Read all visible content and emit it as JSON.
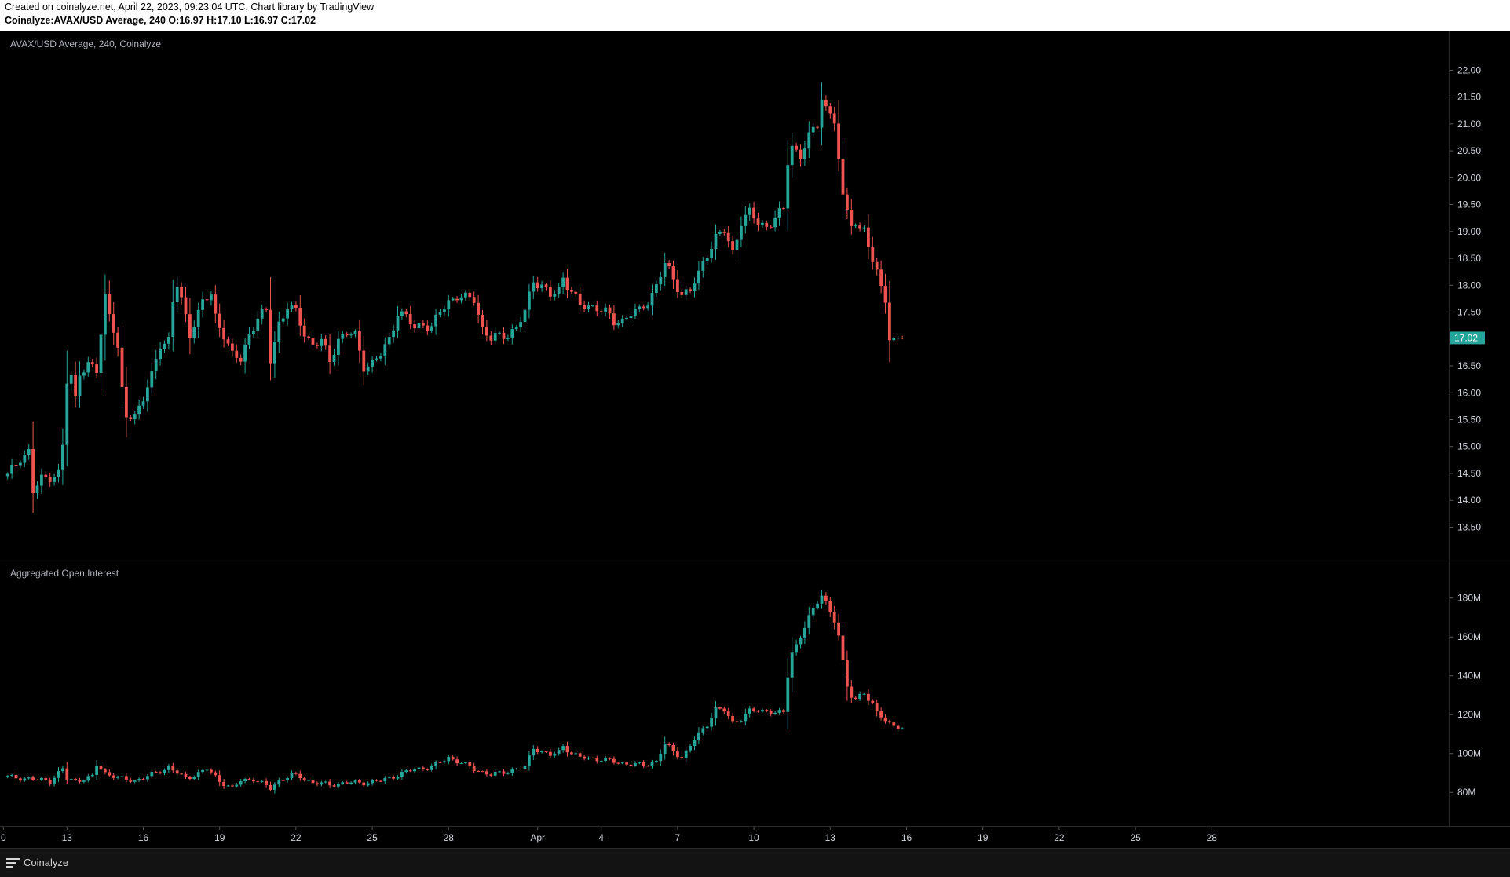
{
  "header": {
    "created": "Created on coinalyze.net, April 22, 2023, 09:23:04 UTC, Chart library by TradingView",
    "symbol": "Coinalyze:AVAX/USD Average, 240",
    "o_label": "O:",
    "o": "16.97",
    "h_label": "H:",
    "h": "17.10",
    "l_label": "L:",
    "l": "16.97",
    "c_label": "C:",
    "c": "17.02"
  },
  "footer": {
    "brand": "Coinalyze",
    "brand_icon": "menu-lines-icon"
  },
  "colors": {
    "up": "#26a69a",
    "down": "#ef5350",
    "background": "#000000",
    "grid_line": "#2a2a2a",
    "axis_text": "#d1d4dc",
    "price_tag": "#26a69a"
  },
  "chart_data": [
    {
      "type": "candlestick",
      "title": "AVAX/USD Average, 240, Coinalyze",
      "ylim": [
        13.2,
        22.4
      ],
      "yticks": [
        "22.00",
        "21.50",
        "21.00",
        "20.50",
        "20.00",
        "19.50",
        "19.00",
        "18.50",
        "18.00",
        "17.50",
        "17.00",
        "16.50",
        "16.00",
        "15.50",
        "15.00",
        "14.50",
        "14.00",
        "13.50"
      ],
      "last_price": "17.02",
      "anchors": [
        [
          0,
          14.45
        ],
        [
          3,
          14.8
        ],
        [
          5,
          14.9
        ],
        [
          6,
          14.15
        ],
        [
          8,
          14.4
        ],
        [
          10,
          14.45
        ],
        [
          12,
          14.5
        ],
        [
          13,
          15.0
        ],
        [
          14,
          16.2
        ],
        [
          15,
          16.3
        ],
        [
          16,
          15.9
        ],
        [
          17,
          16.4
        ],
        [
          19,
          16.5
        ],
        [
          21,
          16.4
        ],
        [
          23,
          17.8
        ],
        [
          24,
          17.5
        ],
        [
          25,
          17.2
        ],
        [
          26,
          16.8
        ],
        [
          27,
          16.0
        ],
        [
          28,
          15.55
        ],
        [
          30,
          15.6
        ],
        [
          32,
          15.9
        ],
        [
          34,
          16.3
        ],
        [
          36,
          16.9
        ],
        [
          38,
          17.0
        ],
        [
          39,
          17.7
        ],
        [
          40,
          18.0
        ],
        [
          42,
          17.4
        ],
        [
          43,
          17.1
        ],
        [
          46,
          17.7
        ],
        [
          48,
          17.8
        ],
        [
          49,
          17.4
        ],
        [
          51,
          17.1
        ],
        [
          53,
          16.7
        ],
        [
          55,
          16.6
        ],
        [
          57,
          17.1
        ],
        [
          59,
          17.4
        ],
        [
          61,
          17.5
        ],
        [
          62,
          16.6
        ],
        [
          64,
          17.3
        ],
        [
          66,
          17.6
        ],
        [
          68,
          17.5
        ],
        [
          70,
          17.1
        ],
        [
          72,
          16.9
        ],
        [
          74,
          16.95
        ],
        [
          76,
          16.6
        ],
        [
          78,
          17.0
        ],
        [
          80,
          17.1
        ],
        [
          82,
          17.05
        ],
        [
          84,
          16.5
        ],
        [
          86,
          16.55
        ],
        [
          88,
          16.7
        ],
        [
          90,
          17.0
        ],
        [
          92,
          17.5
        ],
        [
          94,
          17.4
        ],
        [
          96,
          17.2
        ],
        [
          98,
          17.3
        ],
        [
          100,
          17.2
        ],
        [
          102,
          17.5
        ],
        [
          104,
          17.7
        ],
        [
          106,
          17.8
        ],
        [
          108,
          17.75
        ],
        [
          110,
          17.75
        ],
        [
          112,
          17.2
        ],
        [
          114,
          17.0
        ],
        [
          116,
          17.05
        ],
        [
          118,
          17.1
        ],
        [
          120,
          17.2
        ],
        [
          122,
          17.5
        ],
        [
          124,
          18.1
        ],
        [
          126,
          18.0
        ],
        [
          128,
          17.8
        ],
        [
          130,
          17.9
        ],
        [
          131,
          18.15
        ],
        [
          133,
          17.9
        ],
        [
          135,
          17.6
        ],
        [
          137,
          17.6
        ],
        [
          139,
          17.6
        ],
        [
          141,
          17.5
        ],
        [
          143,
          17.3
        ],
        [
          145,
          17.35
        ],
        [
          147,
          17.5
        ],
        [
          149,
          17.5
        ],
        [
          151,
          17.7
        ],
        [
          153,
          18.0
        ],
        [
          155,
          18.4
        ],
        [
          157,
          18.1
        ],
        [
          159,
          17.85
        ],
        [
          161,
          17.9
        ],
        [
          163,
          18.2
        ],
        [
          165,
          18.6
        ],
        [
          167,
          18.9
        ],
        [
          169,
          19.0
        ],
        [
          171,
          18.6
        ],
        [
          173,
          19.2
        ],
        [
          175,
          19.35
        ],
        [
          177,
          19.15
        ],
        [
          179,
          19.1
        ],
        [
          181,
          19.25
        ],
        [
          183,
          19.4
        ],
        [
          184,
          20.3
        ],
        [
          185,
          20.6
        ],
        [
          187,
          20.4
        ],
        [
          189,
          20.75
        ],
        [
          191,
          21.0
        ],
        [
          192,
          21.5
        ],
        [
          193,
          21.3
        ],
        [
          194,
          21.2
        ],
        [
          195,
          21.05
        ],
        [
          196,
          20.3
        ],
        [
          197,
          19.6
        ],
        [
          198,
          19.45
        ],
        [
          199,
          19.2
        ],
        [
          200,
          19.1
        ],
        [
          201,
          19.0
        ],
        [
          202,
          19.1
        ],
        [
          203,
          18.7
        ],
        [
          204,
          18.35
        ],
        [
          205,
          18.3
        ],
        [
          206,
          18.1
        ],
        [
          207,
          17.7
        ],
        [
          208,
          16.9
        ],
        [
          209,
          17.0
        ],
        [
          210,
          17.05
        ],
        [
          211,
          17.02
        ]
      ]
    },
    {
      "type": "candlestick",
      "title": "Aggregated Open Interest",
      "ylim": [
        70,
        192
      ],
      "yticks": [
        "180M",
        "160M",
        "140M",
        "120M",
        "100M",
        "80M"
      ],
      "anchors": [
        [
          0,
          88
        ],
        [
          10,
          86
        ],
        [
          13,
          92
        ],
        [
          14,
          87
        ],
        [
          16,
          86
        ],
        [
          20,
          88
        ],
        [
          21,
          94
        ],
        [
          23,
          90
        ],
        [
          27,
          87
        ],
        [
          30,
          86
        ],
        [
          35,
          90
        ],
        [
          38,
          93
        ],
        [
          42,
          87
        ],
        [
          45,
          90
        ],
        [
          47,
          92
        ],
        [
          50,
          86
        ],
        [
          53,
          82
        ],
        [
          55,
          86
        ],
        [
          58,
          87
        ],
        [
          62,
          82
        ],
        [
          64,
          86
        ],
        [
          67,
          89
        ],
        [
          69,
          88
        ],
        [
          72,
          85
        ],
        [
          76,
          84
        ],
        [
          80,
          85
        ],
        [
          84,
          85
        ],
        [
          88,
          86
        ],
        [
          92,
          89
        ],
        [
          96,
          92
        ],
        [
          100,
          93
        ],
        [
          104,
          98
        ],
        [
          106,
          96
        ],
        [
          110,
          92
        ],
        [
          114,
          89
        ],
        [
          118,
          91
        ],
        [
          122,
          93
        ],
        [
          124,
          103
        ],
        [
          126,
          101
        ],
        [
          128,
          99
        ],
        [
          130,
          101
        ],
        [
          131,
          104
        ],
        [
          133,
          100
        ],
        [
          135,
          98
        ],
        [
          140,
          97
        ],
        [
          145,
          95
        ],
        [
          150,
          94
        ],
        [
          153,
          96
        ],
        [
          155,
          105
        ],
        [
          157,
          101
        ],
        [
          159,
          98
        ],
        [
          161,
          104
        ],
        [
          163,
          110
        ],
        [
          165,
          115
        ],
        [
          167,
          123
        ],
        [
          169,
          122
        ],
        [
          171,
          116
        ],
        [
          173,
          118
        ],
        [
          175,
          122
        ],
        [
          177,
          122
        ],
        [
          179,
          122
        ],
        [
          181,
          121
        ],
        [
          183,
          121
        ],
        [
          184,
          140
        ],
        [
          185,
          152
        ],
        [
          187,
          160
        ],
        [
          189,
          170
        ],
        [
          191,
          178
        ],
        [
          192,
          182
        ],
        [
          193,
          178
        ],
        [
          194,
          173
        ],
        [
          195,
          168
        ],
        [
          196,
          160
        ],
        [
          197,
          147
        ],
        [
          198,
          135
        ],
        [
          199,
          130
        ],
        [
          200,
          128
        ],
        [
          201,
          130
        ],
        [
          202,
          131
        ],
        [
          203,
          127
        ],
        [
          204,
          125
        ],
        [
          205,
          122
        ],
        [
          206,
          120
        ],
        [
          207,
          117
        ],
        [
          208,
          115
        ],
        [
          209,
          114
        ],
        [
          210,
          113
        ],
        [
          211,
          113
        ]
      ]
    }
  ],
  "x_axis": {
    "ticks": [
      {
        "label": "0",
        "bar": -1
      },
      {
        "label": "13",
        "bar": 14
      },
      {
        "label": "16",
        "bar": 32
      },
      {
        "label": "19",
        "bar": 50
      },
      {
        "label": "22",
        "bar": 68
      },
      {
        "label": "25",
        "bar": 86
      },
      {
        "label": "28",
        "bar": 104
      },
      {
        "label": "Apr",
        "bar": 125
      },
      {
        "label": "4",
        "bar": 140
      },
      {
        "label": "7",
        "bar": 158
      },
      {
        "label": "10",
        "bar": 176
      },
      {
        "label": "13",
        "bar": 194
      },
      {
        "label": "16",
        "bar": 212
      },
      {
        "label": "19",
        "bar": 230
      },
      {
        "label": "22",
        "bar": 248
      },
      {
        "label": "25",
        "bar": 266
      },
      {
        "label": "28",
        "bar": 284
      }
    ]
  }
}
